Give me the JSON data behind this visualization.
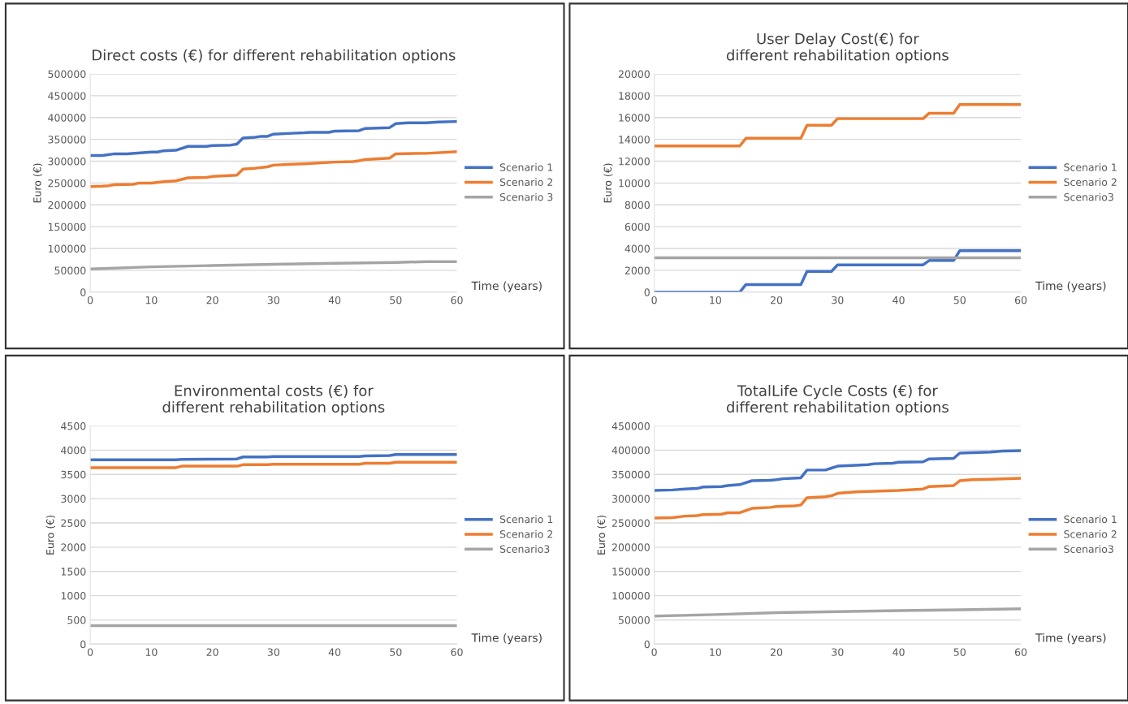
{
  "chart_data": [
    {
      "type": "line",
      "title": "Direct costs (€) for different rehabilitation options",
      "xlabel": "Time (years)",
      "ylabel": "Euro (€)",
      "xlim": [
        0,
        60
      ],
      "xticks": [
        0,
        10,
        20,
        30,
        40,
        50,
        60
      ],
      "ylim": [
        0,
        500000
      ],
      "yticks": [
        0,
        50000,
        100000,
        150000,
        200000,
        250000,
        300000,
        350000,
        400000,
        450000,
        500000
      ],
      "grid": "y",
      "legend": "right",
      "series": [
        {
          "name": "Scenario 1",
          "color": "#4472c4",
          "x": [
            0,
            2,
            4,
            6,
            10,
            11,
            12,
            14,
            16,
            19,
            20,
            23,
            24,
            25,
            27,
            28,
            29,
            30,
            33,
            35,
            36,
            39,
            40,
            44,
            45,
            49,
            50,
            52,
            55,
            57,
            60
          ],
          "values": [
            313000,
            313000,
            317000,
            317000,
            321000,
            321000,
            324000,
            325000,
            334000,
            334000,
            336000,
            337000,
            339000,
            353000,
            355000,
            357000,
            357000,
            362000,
            364000,
            365000,
            366000,
            366000,
            369000,
            370000,
            375000,
            377000,
            386000,
            388000,
            388000,
            390000,
            391000
          ]
        },
        {
          "name": "Scenario 2",
          "color": "#ed7d31",
          "x": [
            0,
            2,
            3,
            4,
            7,
            8,
            10,
            12,
            14,
            16,
            19,
            20,
            24,
            25,
            27,
            29,
            30,
            33,
            35,
            40,
            43,
            44,
            45,
            49,
            50,
            55,
            60
          ],
          "values": [
            242000,
            243000,
            244000,
            246000,
            247000,
            250000,
            250000,
            253000,
            255000,
            262000,
            263000,
            265000,
            268000,
            282000,
            284000,
            287000,
            291000,
            293000,
            294000,
            298000,
            299000,
            301000,
            304000,
            307000,
            317000,
            318000,
            322000
          ]
        },
        {
          "name": "Scenario 3",
          "color": "#a5a5a5",
          "x": [
            0,
            10,
            20,
            30,
            40,
            50,
            55,
            60
          ],
          "values": [
            53000,
            58000,
            61000,
            64000,
            66000,
            68000,
            70000,
            70000
          ]
        }
      ]
    },
    {
      "type": "line",
      "title": "User Delay Cost(€) for\ndifferent rehabilitation options",
      "xlabel": "Time (years)",
      "ylabel": "Euro (€)",
      "xlim": [
        0,
        60
      ],
      "xticks": [
        0,
        10,
        20,
        30,
        40,
        50,
        60
      ],
      "ylim": [
        0,
        20000
      ],
      "yticks": [
        0,
        2000,
        4000,
        6000,
        8000,
        10000,
        12000,
        14000,
        16000,
        18000,
        20000
      ],
      "grid": "y",
      "legend": "right",
      "series": [
        {
          "name": "Scenario 1",
          "color": "#4472c4",
          "x": [
            0,
            14,
            15,
            24,
            25,
            29,
            30,
            44,
            45,
            49,
            50,
            60
          ],
          "values": [
            0,
            0,
            700,
            700,
            1900,
            1900,
            2500,
            2500,
            2900,
            2900,
            3800,
            3800
          ]
        },
        {
          "name": "Scenario 2",
          "color": "#ed7d31",
          "x": [
            0,
            14,
            15,
            24,
            25,
            29,
            30,
            44,
            45,
            49,
            50,
            60
          ],
          "values": [
            13400,
            13400,
            14100,
            14100,
            15300,
            15300,
            15900,
            15900,
            16400,
            16400,
            17200,
            17200
          ]
        },
        {
          "name": "Scenario3",
          "color": "#a5a5a5",
          "x": [
            0,
            60
          ],
          "values": [
            3150,
            3150
          ]
        }
      ]
    },
    {
      "type": "line",
      "title": "Environmental costs (€) for\ndifferent rehabilitation options",
      "xlabel": "Time (years)",
      "ylabel": "Euro (€)",
      "xlim": [
        0,
        60
      ],
      "xticks": [
        0,
        10,
        20,
        30,
        40,
        50,
        60
      ],
      "ylim": [
        0,
        4500
      ],
      "yticks": [
        0,
        500,
        1000,
        1500,
        2000,
        2500,
        3000,
        3500,
        4000,
        4500
      ],
      "grid": "y",
      "legend": "right",
      "series": [
        {
          "name": "Scenario 1",
          "color": "#4472c4",
          "x": [
            0,
            14,
            15,
            24,
            25,
            29,
            30,
            44,
            45,
            49,
            50,
            60
          ],
          "values": [
            3800,
            3800,
            3810,
            3820,
            3860,
            3860,
            3870,
            3870,
            3880,
            3890,
            3910,
            3910
          ]
        },
        {
          "name": "Scenario 2",
          "color": "#ed7d31",
          "x": [
            0,
            14,
            15,
            24,
            25,
            29,
            30,
            44,
            45,
            49,
            50,
            60
          ],
          "values": [
            3640,
            3640,
            3670,
            3670,
            3700,
            3700,
            3710,
            3710,
            3730,
            3730,
            3750,
            3750
          ]
        },
        {
          "name": "Scenario3",
          "color": "#a5a5a5",
          "x": [
            0,
            60
          ],
          "values": [
            380,
            380
          ]
        }
      ]
    },
    {
      "type": "line",
      "title": "TotalLife Cycle Costs (€) for\ndifferent rehabilitation options",
      "xlabel": "Time (years)",
      "ylabel": "Euro (€)",
      "xlim": [
        0,
        60
      ],
      "xticks": [
        0,
        10,
        20,
        30,
        40,
        50,
        60
      ],
      "ylim": [
        0,
        450000
      ],
      "yticks": [
        0,
        50000,
        100000,
        150000,
        200000,
        250000,
        300000,
        350000,
        400000,
        450000
      ],
      "grid": "y",
      "legend": "right",
      "series": [
        {
          "name": "Scenario 1",
          "color": "#4472c4",
          "x": [
            0,
            3,
            5,
            7,
            8,
            11,
            12,
            14,
            16,
            19,
            20,
            21,
            24,
            25,
            28,
            29,
            30,
            33,
            35,
            36,
            39,
            40,
            44,
            45,
            49,
            50,
            55,
            57,
            60
          ],
          "values": [
            317000,
            318000,
            320000,
            321000,
            324000,
            325000,
            327000,
            329000,
            337000,
            338000,
            339000,
            341000,
            343000,
            359000,
            359000,
            363000,
            367000,
            369000,
            370000,
            372000,
            373000,
            375000,
            376000,
            382000,
            383000,
            394000,
            396000,
            398000,
            399000
          ]
        },
        {
          "name": "Scenario 2",
          "color": "#ed7d31",
          "x": [
            0,
            3,
            5,
            7,
            8,
            11,
            12,
            14,
            16,
            19,
            20,
            23,
            24,
            25,
            28,
            29,
            30,
            33,
            35,
            40,
            44,
            45,
            49,
            50,
            52,
            55,
            60
          ],
          "values": [
            260000,
            261000,
            264000,
            265000,
            267000,
            268000,
            271000,
            271000,
            280000,
            282000,
            284000,
            285000,
            287000,
            302000,
            304000,
            306000,
            311000,
            314000,
            315000,
            317000,
            320000,
            325000,
            327000,
            337000,
            339000,
            340000,
            342000
          ]
        },
        {
          "name": "Scenario3",
          "color": "#a5a5a5",
          "x": [
            0,
            10,
            20,
            30,
            40,
            50,
            60
          ],
          "values": [
            58000,
            61000,
            65000,
            67000,
            69000,
            71000,
            73000
          ]
        }
      ]
    }
  ]
}
